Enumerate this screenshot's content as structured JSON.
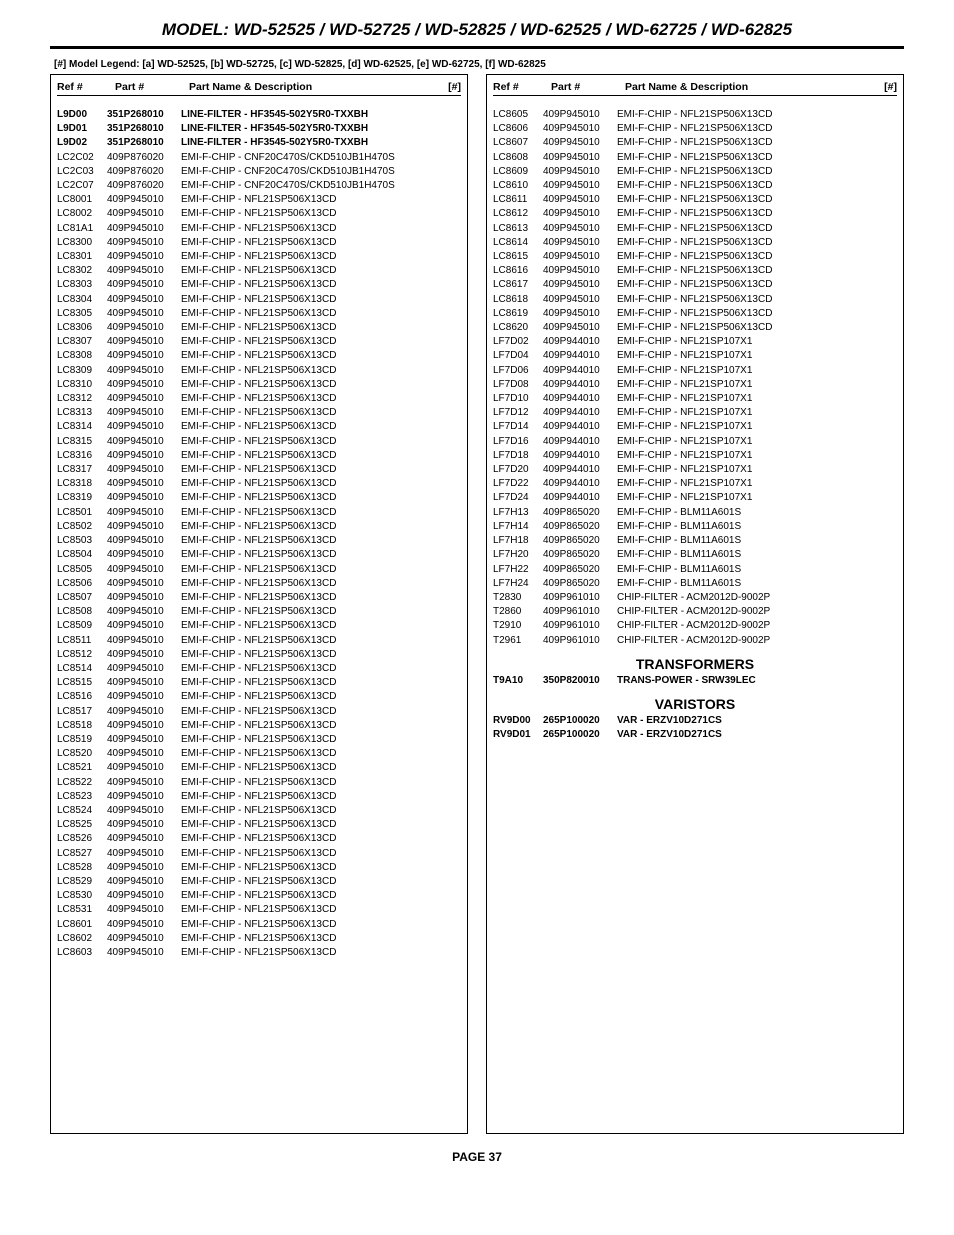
{
  "header": {
    "model_line": "MODEL: WD-52525 / WD-52725 / WD-52825 / WD-62525 / WD-62725 / WD-62825",
    "legend": "[#] Model Legend: [a]  WD-52525, [b]  WD-52725, [c]  WD-52825, [d]  WD-62525, [e]  WD-62725, [f]  WD-62825"
  },
  "columns_header": {
    "ref": "Ref #",
    "part": "Part #",
    "name": "Part Name & Description",
    "hash": "[#]"
  },
  "footer": {
    "page": "PAGE 37"
  },
  "left": [
    {
      "ref": "L9D00",
      "part": "351P268010",
      "name": "LINE-FILTER  -  HF3545-502Y5R0-TXXBH",
      "bold": true
    },
    {
      "ref": "L9D01",
      "part": "351P268010",
      "name": "LINE-FILTER  -  HF3545-502Y5R0-TXXBH",
      "bold": true
    },
    {
      "ref": "L9D02",
      "part": "351P268010",
      "name": "LINE-FILTER  -  HF3545-502Y5R0-TXXBH",
      "bold": true
    },
    {
      "ref": "LC2C02",
      "part": "409P876020",
      "name": "EMI-F-CHIP - CNF20C470S/CKD510JB1H470S"
    },
    {
      "ref": "LC2C03",
      "part": "409P876020",
      "name": "EMI-F-CHIP - CNF20C470S/CKD510JB1H470S"
    },
    {
      "ref": "LC2C07",
      "part": "409P876020",
      "name": "EMI-F-CHIP - CNF20C470S/CKD510JB1H470S"
    },
    {
      "ref": "LC8001",
      "part": "409P945010",
      "name": "EMI-F-CHIP - NFL21SP506X13CD"
    },
    {
      "ref": "LC8002",
      "part": "409P945010",
      "name": "EMI-F-CHIP - NFL21SP506X13CD"
    },
    {
      "ref": "LC81A1",
      "part": "409P945010",
      "name": "EMI-F-CHIP - NFL21SP506X13CD"
    },
    {
      "ref": "LC8300",
      "part": "409P945010",
      "name": "EMI-F-CHIP - NFL21SP506X13CD"
    },
    {
      "ref": "LC8301",
      "part": "409P945010",
      "name": "EMI-F-CHIP - NFL21SP506X13CD"
    },
    {
      "ref": "LC8302",
      "part": "409P945010",
      "name": "EMI-F-CHIP - NFL21SP506X13CD"
    },
    {
      "ref": "LC8303",
      "part": "409P945010",
      "name": "EMI-F-CHIP - NFL21SP506X13CD"
    },
    {
      "ref": "LC8304",
      "part": "409P945010",
      "name": "EMI-F-CHIP - NFL21SP506X13CD"
    },
    {
      "ref": "LC8305",
      "part": "409P945010",
      "name": "EMI-F-CHIP - NFL21SP506X13CD"
    },
    {
      "ref": "LC8306",
      "part": "409P945010",
      "name": "EMI-F-CHIP - NFL21SP506X13CD"
    },
    {
      "ref": "LC8307",
      "part": "409P945010",
      "name": "EMI-F-CHIP - NFL21SP506X13CD"
    },
    {
      "ref": "LC8308",
      "part": "409P945010",
      "name": "EMI-F-CHIP - NFL21SP506X13CD"
    },
    {
      "ref": "LC8309",
      "part": "409P945010",
      "name": "EMI-F-CHIP - NFL21SP506X13CD"
    },
    {
      "ref": "LC8310",
      "part": "409P945010",
      "name": "EMI-F-CHIP - NFL21SP506X13CD"
    },
    {
      "ref": "LC8312",
      "part": "409P945010",
      "name": "EMI-F-CHIP - NFL21SP506X13CD"
    },
    {
      "ref": "LC8313",
      "part": "409P945010",
      "name": "EMI-F-CHIP - NFL21SP506X13CD"
    },
    {
      "ref": "LC8314",
      "part": "409P945010",
      "name": "EMI-F-CHIP - NFL21SP506X13CD"
    },
    {
      "ref": "LC8315",
      "part": "409P945010",
      "name": "EMI-F-CHIP - NFL21SP506X13CD"
    },
    {
      "ref": "LC8316",
      "part": "409P945010",
      "name": "EMI-F-CHIP - NFL21SP506X13CD"
    },
    {
      "ref": "LC8317",
      "part": "409P945010",
      "name": "EMI-F-CHIP - NFL21SP506X13CD"
    },
    {
      "ref": "LC8318",
      "part": "409P945010",
      "name": "EMI-F-CHIP - NFL21SP506X13CD"
    },
    {
      "ref": "LC8319",
      "part": "409P945010",
      "name": "EMI-F-CHIP - NFL21SP506X13CD"
    },
    {
      "ref": "LC8501",
      "part": "409P945010",
      "name": "EMI-F-CHIP - NFL21SP506X13CD"
    },
    {
      "ref": "LC8502",
      "part": "409P945010",
      "name": "EMI-F-CHIP - NFL21SP506X13CD"
    },
    {
      "ref": "LC8503",
      "part": "409P945010",
      "name": "EMI-F-CHIP - NFL21SP506X13CD"
    },
    {
      "ref": "LC8504",
      "part": "409P945010",
      "name": "EMI-F-CHIP - NFL21SP506X13CD"
    },
    {
      "ref": "LC8505",
      "part": "409P945010",
      "name": "EMI-F-CHIP - NFL21SP506X13CD"
    },
    {
      "ref": "LC8506",
      "part": "409P945010",
      "name": "EMI-F-CHIP - NFL21SP506X13CD"
    },
    {
      "ref": "LC8507",
      "part": "409P945010",
      "name": "EMI-F-CHIP - NFL21SP506X13CD"
    },
    {
      "ref": "LC8508",
      "part": "409P945010",
      "name": "EMI-F-CHIP - NFL21SP506X13CD"
    },
    {
      "ref": "LC8509",
      "part": "409P945010",
      "name": "EMI-F-CHIP - NFL21SP506X13CD"
    },
    {
      "ref": "LC8511",
      "part": "409P945010",
      "name": "EMI-F-CHIP - NFL21SP506X13CD"
    },
    {
      "ref": "LC8512",
      "part": "409P945010",
      "name": "EMI-F-CHIP - NFL21SP506X13CD"
    },
    {
      "ref": "LC8514",
      "part": "409P945010",
      "name": "EMI-F-CHIP - NFL21SP506X13CD"
    },
    {
      "ref": "LC8515",
      "part": "409P945010",
      "name": "EMI-F-CHIP - NFL21SP506X13CD"
    },
    {
      "ref": "LC8516",
      "part": "409P945010",
      "name": "EMI-F-CHIP - NFL21SP506X13CD"
    },
    {
      "ref": "LC8517",
      "part": "409P945010",
      "name": "EMI-F-CHIP - NFL21SP506X13CD"
    },
    {
      "ref": "LC8518",
      "part": "409P945010",
      "name": "EMI-F-CHIP - NFL21SP506X13CD"
    },
    {
      "ref": "LC8519",
      "part": "409P945010",
      "name": "EMI-F-CHIP - NFL21SP506X13CD"
    },
    {
      "ref": "LC8520",
      "part": "409P945010",
      "name": "EMI-F-CHIP - NFL21SP506X13CD"
    },
    {
      "ref": "LC8521",
      "part": "409P945010",
      "name": "EMI-F-CHIP - NFL21SP506X13CD"
    },
    {
      "ref": "LC8522",
      "part": "409P945010",
      "name": "EMI-F-CHIP - NFL21SP506X13CD"
    },
    {
      "ref": "LC8523",
      "part": "409P945010",
      "name": "EMI-F-CHIP - NFL21SP506X13CD"
    },
    {
      "ref": "LC8524",
      "part": "409P945010",
      "name": "EMI-F-CHIP - NFL21SP506X13CD"
    },
    {
      "ref": "LC8525",
      "part": "409P945010",
      "name": "EMI-F-CHIP - NFL21SP506X13CD"
    },
    {
      "ref": "LC8526",
      "part": "409P945010",
      "name": "EMI-F-CHIP - NFL21SP506X13CD"
    },
    {
      "ref": "LC8527",
      "part": "409P945010",
      "name": "EMI-F-CHIP - NFL21SP506X13CD"
    },
    {
      "ref": "LC8528",
      "part": "409P945010",
      "name": "EMI-F-CHIP - NFL21SP506X13CD"
    },
    {
      "ref": "LC8529",
      "part": "409P945010",
      "name": "EMI-F-CHIP - NFL21SP506X13CD"
    },
    {
      "ref": "LC8530",
      "part": "409P945010",
      "name": "EMI-F-CHIP - NFL21SP506X13CD"
    },
    {
      "ref": "LC8531",
      "part": "409P945010",
      "name": "EMI-F-CHIP - NFL21SP506X13CD"
    },
    {
      "ref": "LC8601",
      "part": "409P945010",
      "name": "EMI-F-CHIP - NFL21SP506X13CD"
    },
    {
      "ref": "LC8602",
      "part": "409P945010",
      "name": "EMI-F-CHIP - NFL21SP506X13CD"
    },
    {
      "ref": "LC8603",
      "part": "409P945010",
      "name": "EMI-F-CHIP - NFL21SP506X13CD"
    }
  ],
  "right": [
    {
      "ref": "LC8605",
      "part": "409P945010",
      "name": "EMI-F-CHIP - NFL21SP506X13CD"
    },
    {
      "ref": "LC8606",
      "part": "409P945010",
      "name": "EMI-F-CHIP - NFL21SP506X13CD"
    },
    {
      "ref": "LC8607",
      "part": "409P945010",
      "name": "EMI-F-CHIP - NFL21SP506X13CD"
    },
    {
      "ref": "LC8608",
      "part": "409P945010",
      "name": "EMI-F-CHIP - NFL21SP506X13CD"
    },
    {
      "ref": "LC8609",
      "part": "409P945010",
      "name": "EMI-F-CHIP - NFL21SP506X13CD"
    },
    {
      "ref": "LC8610",
      "part": "409P945010",
      "name": "EMI-F-CHIP - NFL21SP506X13CD"
    },
    {
      "ref": "LC8611",
      "part": "409P945010",
      "name": "EMI-F-CHIP - NFL21SP506X13CD"
    },
    {
      "ref": "LC8612",
      "part": "409P945010",
      "name": "EMI-F-CHIP - NFL21SP506X13CD"
    },
    {
      "ref": "LC8613",
      "part": "409P945010",
      "name": "EMI-F-CHIP - NFL21SP506X13CD"
    },
    {
      "ref": "LC8614",
      "part": "409P945010",
      "name": "EMI-F-CHIP - NFL21SP506X13CD"
    },
    {
      "ref": "LC8615",
      "part": "409P945010",
      "name": "EMI-F-CHIP - NFL21SP506X13CD"
    },
    {
      "ref": "LC8616",
      "part": "409P945010",
      "name": "EMI-F-CHIP - NFL21SP506X13CD"
    },
    {
      "ref": "LC8617",
      "part": "409P945010",
      "name": "EMI-F-CHIP - NFL21SP506X13CD"
    },
    {
      "ref": "LC8618",
      "part": "409P945010",
      "name": "EMI-F-CHIP - NFL21SP506X13CD"
    },
    {
      "ref": "LC8619",
      "part": "409P945010",
      "name": "EMI-F-CHIP - NFL21SP506X13CD"
    },
    {
      "ref": "LC8620",
      "part": "409P945010",
      "name": "EMI-F-CHIP - NFL21SP506X13CD"
    },
    {
      "ref": "LF7D02",
      "part": "409P944010",
      "name": "EMI-F-CHIP - NFL21SP107X1"
    },
    {
      "ref": "LF7D04",
      "part": "409P944010",
      "name": "EMI-F-CHIP - NFL21SP107X1"
    },
    {
      "ref": "LF7D06",
      "part": "409P944010",
      "name": "EMI-F-CHIP - NFL21SP107X1"
    },
    {
      "ref": "LF7D08",
      "part": "409P944010",
      "name": "EMI-F-CHIP - NFL21SP107X1"
    },
    {
      "ref": "LF7D10",
      "part": "409P944010",
      "name": "EMI-F-CHIP - NFL21SP107X1"
    },
    {
      "ref": "LF7D12",
      "part": "409P944010",
      "name": "EMI-F-CHIP - NFL21SP107X1"
    },
    {
      "ref": "LF7D14",
      "part": "409P944010",
      "name": "EMI-F-CHIP - NFL21SP107X1"
    },
    {
      "ref": "LF7D16",
      "part": "409P944010",
      "name": "EMI-F-CHIP - NFL21SP107X1"
    },
    {
      "ref": "LF7D18",
      "part": "409P944010",
      "name": "EMI-F-CHIP - NFL21SP107X1"
    },
    {
      "ref": "LF7D20",
      "part": "409P944010",
      "name": "EMI-F-CHIP - NFL21SP107X1"
    },
    {
      "ref": "LF7D22",
      "part": "409P944010",
      "name": "EMI-F-CHIP - NFL21SP107X1"
    },
    {
      "ref": "LF7D24",
      "part": "409P944010",
      "name": "EMI-F-CHIP - NFL21SP107X1"
    },
    {
      "ref": "LF7H13",
      "part": "409P865020",
      "name": "EMI-F-CHIP - BLM11A601S"
    },
    {
      "ref": "LF7H14",
      "part": "409P865020",
      "name": "EMI-F-CHIP - BLM11A601S"
    },
    {
      "ref": "LF7H18",
      "part": "409P865020",
      "name": "EMI-F-CHIP - BLM11A601S"
    },
    {
      "ref": "LF7H20",
      "part": "409P865020",
      "name": "EMI-F-CHIP - BLM11A601S"
    },
    {
      "ref": "LF7H22",
      "part": "409P865020",
      "name": "EMI-F-CHIP - BLM11A601S"
    },
    {
      "ref": "LF7H24",
      "part": "409P865020",
      "name": "EMI-F-CHIP - BLM11A601S"
    },
    {
      "ref": "T2830",
      "part": "409P961010",
      "name": "CHIP-FILTER - ACM2012D-9002P"
    },
    {
      "ref": "T2860",
      "part": "409P961010",
      "name": "CHIP-FILTER - ACM2012D-9002P"
    },
    {
      "ref": "T2910",
      "part": "409P961010",
      "name": "CHIP-FILTER - ACM2012D-9002P"
    },
    {
      "ref": "T2961",
      "part": "409P961010",
      "name": "CHIP-FILTER - ACM2012D-9002P"
    }
  ],
  "sections": {
    "transformers": {
      "title": "TRANSFORMERS",
      "rows": [
        {
          "ref": "T9A10",
          "part": "350P820010",
          "name": "TRANS-POWER  -  SRW39LEC",
          "bold": true
        }
      ]
    },
    "varistors": {
      "title": "VARISTORS",
      "rows": [
        {
          "ref": "RV9D00",
          "part": "265P100020",
          "name": "VAR - ERZV10D271CS",
          "bold": true
        },
        {
          "ref": "RV9D01",
          "part": "265P100020",
          "name": "VAR - ERZV10D271CS",
          "bold": true
        }
      ]
    }
  }
}
